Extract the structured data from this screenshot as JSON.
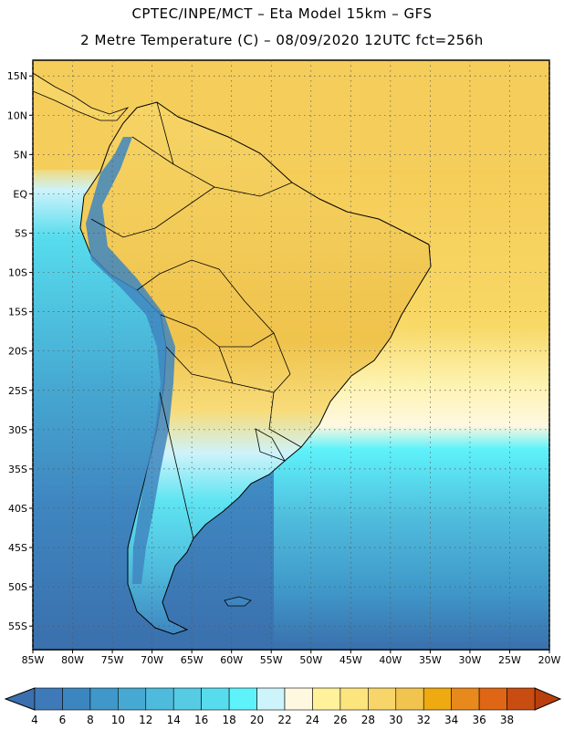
{
  "header": {
    "line1": "CPTEC/INPE/MCT –  Eta Model 15km – GFS",
    "line2": "2 Metre Temperature (C) – 08/09/2020 12UTC fct=256h"
  },
  "map": {
    "lat_labels": [
      "15N",
      "10N",
      "5N",
      "EQ",
      "5S",
      "10S",
      "15S",
      "20S",
      "25S",
      "30S",
      "35S",
      "40S",
      "45S",
      "50S",
      "55S"
    ],
    "lat_values": [
      15,
      10,
      5,
      0,
      -5,
      -10,
      -15,
      -20,
      -25,
      -30,
      -35,
      -40,
      -45,
      -50,
      -55
    ],
    "lon_labels": [
      "85W",
      "80W",
      "75W",
      "70W",
      "65W",
      "60W",
      "55W",
      "50W",
      "45W",
      "40W",
      "35W",
      "30W",
      "25W",
      "20W"
    ],
    "lon_values": [
      -85,
      -80,
      -75,
      -70,
      -65,
      -60,
      -55,
      -50,
      -45,
      -40,
      -35,
      -30,
      -25,
      -20
    ],
    "extent": {
      "lon_min": -85,
      "lon_max": -20,
      "lat_min": -58,
      "lat_max": 17
    },
    "grid": true
  },
  "colorbar": {
    "labels": [
      "4",
      "6",
      "8",
      "10",
      "12",
      "14",
      "16",
      "18",
      "20",
      "22",
      "24",
      "26",
      "28",
      "30",
      "32",
      "34",
      "36",
      "38"
    ],
    "colors": [
      "#3f7ab8",
      "#3c86c0",
      "#3f98c9",
      "#46a9d2",
      "#4fbbdc",
      "#55cbe4",
      "#57dced",
      "#5ef2fb",
      "#cdf3fb",
      "#fff8e0",
      "#fff29a",
      "#fde57e",
      "#f8d569",
      "#f1c44f",
      "#eeaa10",
      "#e8891c",
      "#de6614",
      "#c94c10"
    ],
    "low_color": "#3a70ad",
    "high_color": "#b9400c"
  }
}
